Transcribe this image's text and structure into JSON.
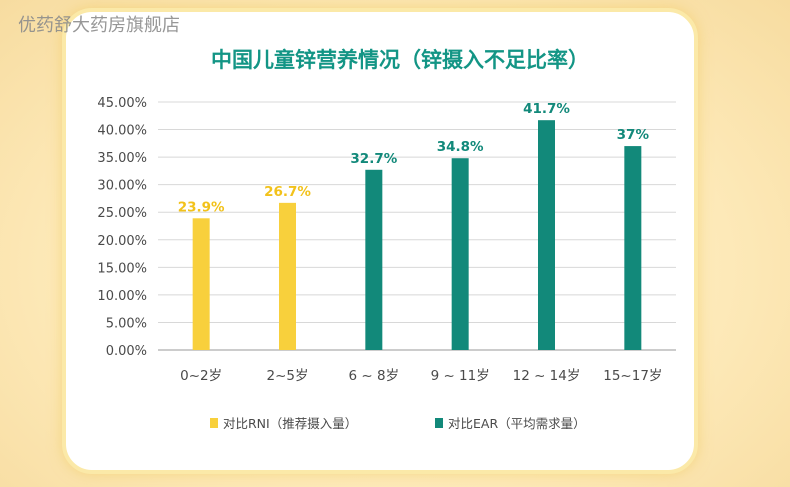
{
  "watermark": "优药舒大药房旗舰店",
  "colors": {
    "rni": "#f8d03c",
    "ear": "#12897a",
    "rni_label": "#f2c21b",
    "ear_label": "#12897a",
    "title": "#139585"
  },
  "chart_data": {
    "type": "bar",
    "title": "中国儿童锌营养情况（锌摄入不足比率）",
    "xlabel": "",
    "ylabel": "",
    "categories": [
      "0~2岁",
      "2~5岁",
      "6 ~ 8岁",
      "9 ~ 11岁",
      "12 ~ 14岁",
      "15~17岁"
    ],
    "values": [
      23.9,
      26.7,
      32.7,
      34.8,
      41.7,
      37
    ],
    "value_labels": [
      "23.9%",
      "26.7%",
      "32.7%",
      "34.8%",
      "41.7%",
      "37%"
    ],
    "series_of_bar": [
      "rni",
      "rni",
      "ear",
      "ear",
      "ear",
      "ear"
    ],
    "ylim": [
      0,
      45
    ],
    "yticks": [
      "0.00%",
      "5.00%",
      "10.00%",
      "15.00%",
      "20.00%",
      "25.00%",
      "30.00%",
      "35.00%",
      "40.00%",
      "45.00%"
    ],
    "grid": true,
    "legend": [
      {
        "key": "rni",
        "label": "对比RNI（推荐摄入量）"
      },
      {
        "key": "ear",
        "label": "对比EAR（平均需求量）"
      }
    ],
    "legend_position": "bottom"
  }
}
